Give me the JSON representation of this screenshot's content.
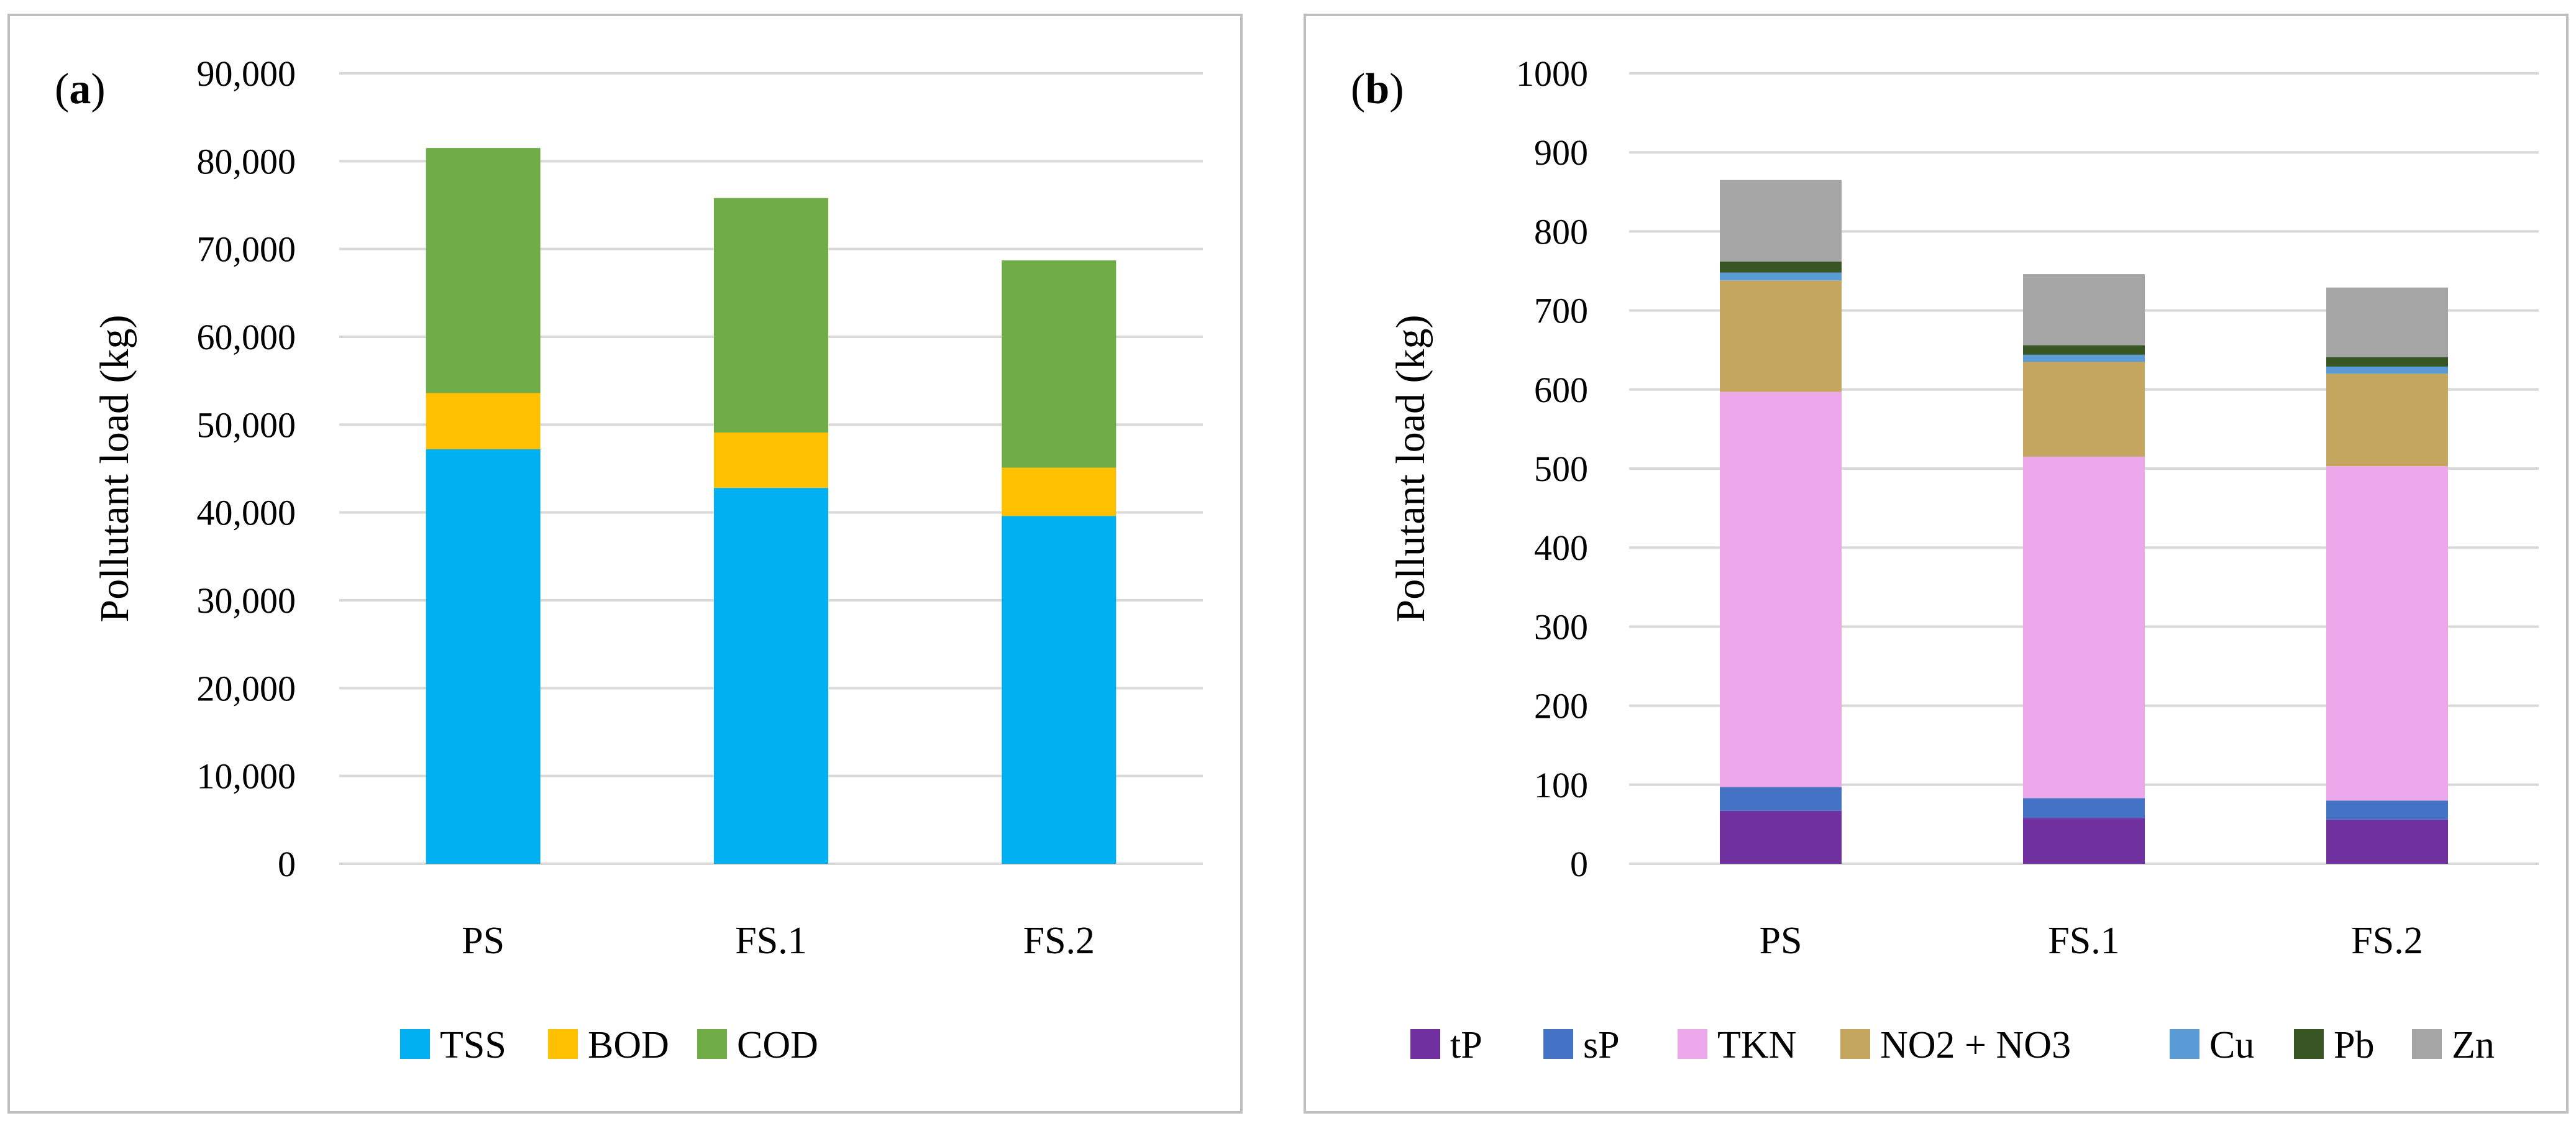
{
  "chart_data": [
    {
      "type": "bar",
      "stacked": true,
      "panel_label": "a",
      "categories": [
        "PS",
        "FS.1",
        "FS.2"
      ],
      "ylabel": "Pollutant load (kg)",
      "ylim": [
        0,
        90000
      ],
      "yticks": [
        "0",
        "10,000",
        "20,000",
        "30,000",
        "40,000",
        "50,000",
        "60,000",
        "70,000",
        "80,000",
        "90,000"
      ],
      "grid": true,
      "legend": "bottom",
      "series": [
        {
          "name": "TSS",
          "color": "#00b0f0",
          "values": [
            47200,
            42800,
            39600
          ]
        },
        {
          "name": "BOD",
          "color": "#ffc000",
          "values": [
            6400,
            6300,
            5500
          ]
        },
        {
          "name": "COD",
          "color": "#70ad47",
          "values": [
            27900,
            26700,
            23600
          ]
        }
      ]
    },
    {
      "type": "bar",
      "stacked": true,
      "panel_label": "b",
      "categories": [
        "PS",
        "FS.1",
        "FS.2"
      ],
      "ylabel": "Pollutant load (kg)",
      "ylim": [
        0,
        1000
      ],
      "yticks": [
        "0",
        "100",
        "200",
        "300",
        "400",
        "500",
        "600",
        "700",
        "800",
        "900",
        "1000"
      ],
      "grid": true,
      "legend": "bottom",
      "series": [
        {
          "name": "tP",
          "color": "#7030a0",
          "values": [
            67,
            58,
            56
          ]
        },
        {
          "name": "sP",
          "color": "#4472c4",
          "values": [
            30,
            25,
            24
          ]
        },
        {
          "name": "TKN",
          "color": "#eba7ea",
          "values": [
            500,
            432,
            423
          ]
        },
        {
          "name": "NO2 + NO3",
          "color": "#c4a65e",
          "values": [
            141,
            120,
            117
          ]
        },
        {
          "name": "Cu",
          "color": "#5b9bd5",
          "values": [
            10,
            9,
            9
          ]
        },
        {
          "name": "Pb",
          "color": "#375623",
          "values": [
            14,
            12,
            12
          ]
        },
        {
          "name": "Zn",
          "color": "#a5a5a5",
          "values": [
            103,
            90,
            88
          ]
        }
      ]
    }
  ]
}
